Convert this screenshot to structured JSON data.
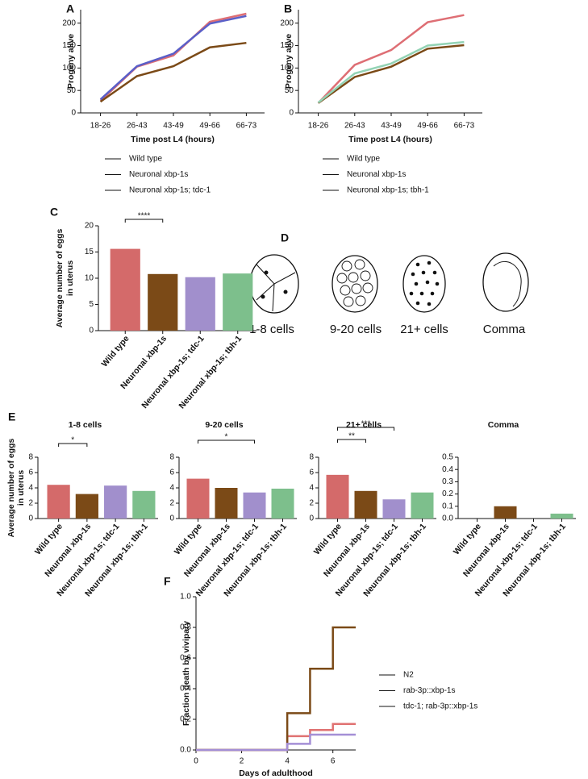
{
  "panel_labels": [
    "A",
    "B",
    "C",
    "D",
    "E",
    "F"
  ],
  "diagram": {
    "labels": [
      "1-8 cells",
      "9-20 cells",
      "21+ cells",
      "Comma"
    ]
  },
  "chart_data": [
    {
      "type": "line",
      "ylabel": "Progeny alive",
      "xlabel": "Time post L4 (hours)",
      "categories": [
        "18-26",
        "26-43",
        "43-49",
        "49-66",
        "66-73"
      ],
      "ylim": [
        0,
        230
      ],
      "yticks": [
        0,
        50,
        100,
        150,
        200
      ],
      "legend": "bottom",
      "series": [
        {
          "name": "Wild type",
          "color": "#de6e74",
          "values": [
            27,
            103,
            128,
            203,
            221
          ]
        },
        {
          "name": "Neuronal xbp-1s",
          "color": "#7b4a17",
          "values": [
            25,
            82,
            104,
            146,
            156
          ]
        },
        {
          "name": "Neuronal xbp-1s; tdc-1",
          "color": "#5a5fc8",
          "values": [
            30,
            104,
            132,
            199,
            216
          ]
        }
      ]
    },
    {
      "type": "line",
      "ylabel": "Progeny alive",
      "xlabel": "Time post L4 (hours)",
      "categories": [
        "18-26",
        "26-43",
        "43-49",
        "49-66",
        "66-73"
      ],
      "ylim": [
        0,
        230
      ],
      "yticks": [
        0,
        50,
        100,
        150,
        200
      ],
      "legend": "bottom",
      "series": [
        {
          "name": "Wild type",
          "color": "#de6e74",
          "values": [
            22,
            107,
            140,
            202,
            218
          ]
        },
        {
          "name": "Neuronal xbp-1s",
          "color": "#7b4a17",
          "values": [
            22,
            80,
            103,
            143,
            151
          ]
        },
        {
          "name": "Neuronal xbp-1s; tbh-1",
          "color": "#93d3b5",
          "values": [
            23,
            88,
            110,
            150,
            158
          ]
        }
      ]
    },
    {
      "type": "bar",
      "ylabel": [
        "Average number of eggs",
        "in uterus"
      ],
      "categories": [
        "Wild type",
        "Neuronal xbp-1s",
        "Neuronal xbp-1s; tdc-1",
        "Neuronal xbp-1s; tbh-1"
      ],
      "values": [
        15.6,
        10.8,
        10.2,
        10.9
      ],
      "colors": [
        "#d46a6a",
        "#7b4a17",
        "#a18fcc",
        "#7dbf8c"
      ],
      "ylim": [
        0,
        20
      ],
      "yticks": [
        0,
        5,
        10,
        15,
        20
      ],
      "annotations": [
        "****"
      ]
    },
    {
      "type": "bar",
      "title": "1-8 cells",
      "ylabel": [
        "Average number of eggs",
        "in uterus"
      ],
      "categories": [
        "Wild type",
        "Neuronal xbp-1s",
        "Neuronal xbp-1s; tdc-1",
        "Neuronal xbp-1s; tbh-1"
      ],
      "values": [
        4.4,
        3.2,
        4.3,
        3.6
      ],
      "colors": [
        "#d46a6a",
        "#7b4a17",
        "#a18fcc",
        "#7dbf8c"
      ],
      "ylim": [
        0,
        8
      ],
      "yticks": [
        0,
        2,
        4,
        6,
        8
      ],
      "annotations": [
        "*"
      ]
    },
    {
      "type": "bar",
      "title": "9-20 cells",
      "categories": [
        "Wild type",
        "Neuronal xbp-1s",
        "Neuronal xbp-1s; tdc-1",
        "Neuronal xbp-1s; tbh-1"
      ],
      "values": [
        5.2,
        4.0,
        3.4,
        3.9
      ],
      "colors": [
        "#d46a6a",
        "#7b4a17",
        "#a18fcc",
        "#7dbf8c"
      ],
      "ylim": [
        0,
        8
      ],
      "yticks": [
        0,
        2,
        4,
        6,
        8
      ],
      "annotations": [
        "*"
      ]
    },
    {
      "type": "bar",
      "title": "21+ cells",
      "categories": [
        "Wild type",
        "Neuronal xbp-1s",
        "Neuronal xbp-1s; tdc-1",
        "Neuronal xbp-1s; tbh-1"
      ],
      "values": [
        5.7,
        3.6,
        2.5,
        3.4
      ],
      "colors": [
        "#d46a6a",
        "#7b4a17",
        "#a18fcc",
        "#7dbf8c"
      ],
      "ylim": [
        0,
        8
      ],
      "yticks": [
        0,
        2,
        4,
        6,
        8
      ],
      "annotations": [
        "**",
        "***"
      ]
    },
    {
      "type": "bar",
      "title": "Comma",
      "categories": [
        "Wild type",
        "Neuronal xbp-1s",
        "Neuronal xbp-1s; tdc-1",
        "Neuronal xbp-1s; tbh-1"
      ],
      "values": [
        0,
        0.1,
        0,
        0.04
      ],
      "colors": [
        "#d46a6a",
        "#7b4a17",
        "#a18fcc",
        "#7dbf8c"
      ],
      "ylim": [
        0,
        0.5
      ],
      "yticks": [
        {
          "value": 0,
          "label": "0.0"
        },
        0.1,
        0.2,
        0.3,
        0.4,
        0.5
      ]
    },
    {
      "type": "line",
      "step": "post",
      "ylabel": "Fraction death by vivipary",
      "xlabel": "Days of adulthood",
      "x": [
        0,
        4,
        5,
        6,
        7
      ],
      "xlim": [
        0,
        7
      ],
      "xticks": [
        0,
        2,
        4,
        6
      ],
      "ylim": [
        0,
        1
      ],
      "yticks": [
        {
          "value": 0,
          "label": "0.0"
        },
        0.2,
        0.4,
        0.6,
        0.8,
        {
          "value": 1,
          "label": "1.0"
        }
      ],
      "legend": "right",
      "series": [
        {
          "name": "N2",
          "color": "#e07272",
          "values": [
            0,
            0.09,
            0.13,
            0.17,
            0.17
          ]
        },
        {
          "name": "rab-3p::xbp-1s",
          "color": "#7b4a17",
          "values": [
            0,
            0.24,
            0.53,
            0.8,
            0.8
          ]
        },
        {
          "name": "tdc-1; rab-3p::xbp-1s",
          "color": "#a48fd6",
          "values": [
            0,
            0.04,
            0.1,
            0.1,
            0.1
          ]
        }
      ]
    }
  ]
}
